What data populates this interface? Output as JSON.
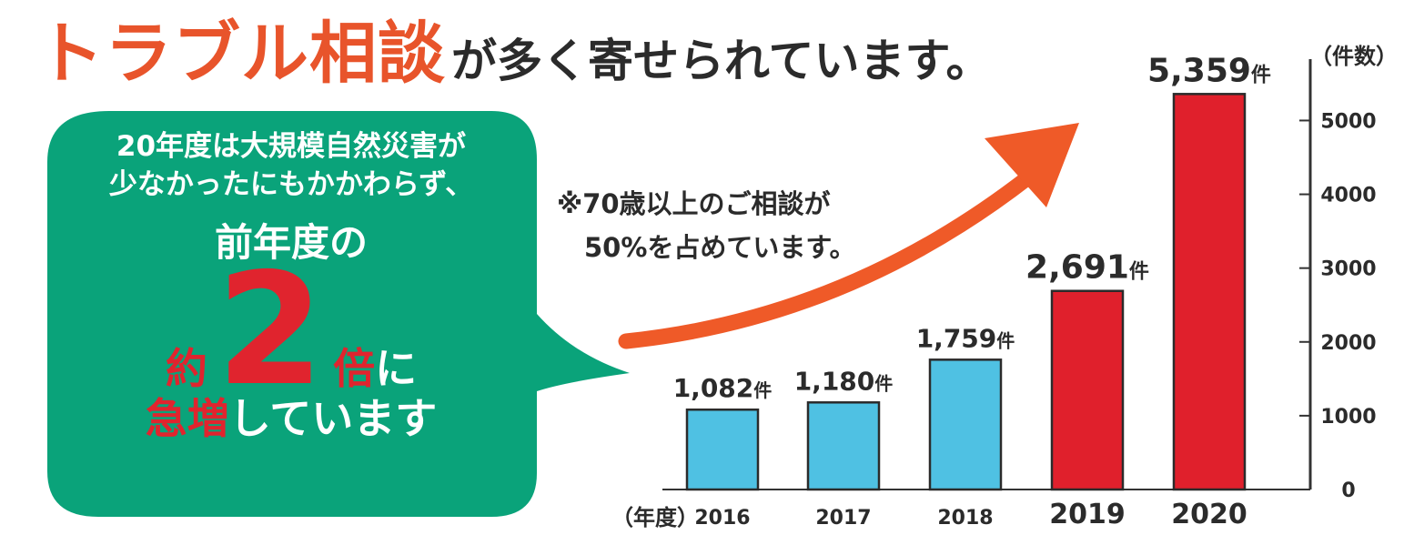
{
  "headline": {
    "accent": "トラブル相談",
    "rest": "が多く寄せられています。"
  },
  "bubble": {
    "line1": "20年度は大規模自然災害が",
    "line2": "少なかったにもかかわらず、",
    "line3": "前年度の",
    "approx": "約",
    "big_number": "2",
    "times": "倍",
    "ni": "に",
    "last_red": "急増",
    "last_white": "しています",
    "colors": {
      "fill": "#0aa37a",
      "emphasis": "#e0242e",
      "text": "#ffffff"
    }
  },
  "note": {
    "line1": "※70歳以上のご相談が",
    "line2": "50%を占めています。"
  },
  "units": {
    "y": "（件数）",
    "x": "（年度）"
  },
  "chart_data": {
    "type": "bar",
    "categories": [
      "2016",
      "2017",
      "2018",
      "2019",
      "2020"
    ],
    "values": [
      1082,
      1180,
      1759,
      2691,
      5359
    ],
    "value_labels": [
      "1,082",
      "1,180",
      "1,759",
      "2,691",
      "5,359"
    ],
    "value_suffix": "件",
    "yticks": [
      "0",
      "1000",
      "2000",
      "3000",
      "4000",
      "5000"
    ],
    "ylim": [
      0,
      5400
    ],
    "axis_position": "right",
    "bar_colors": [
      "#4fc1e3",
      "#4fc1e3",
      "#4fc1e3",
      "#e0202c",
      "#e0202c"
    ],
    "trend_arrow_color": "#ef5a28",
    "grid": false
  }
}
